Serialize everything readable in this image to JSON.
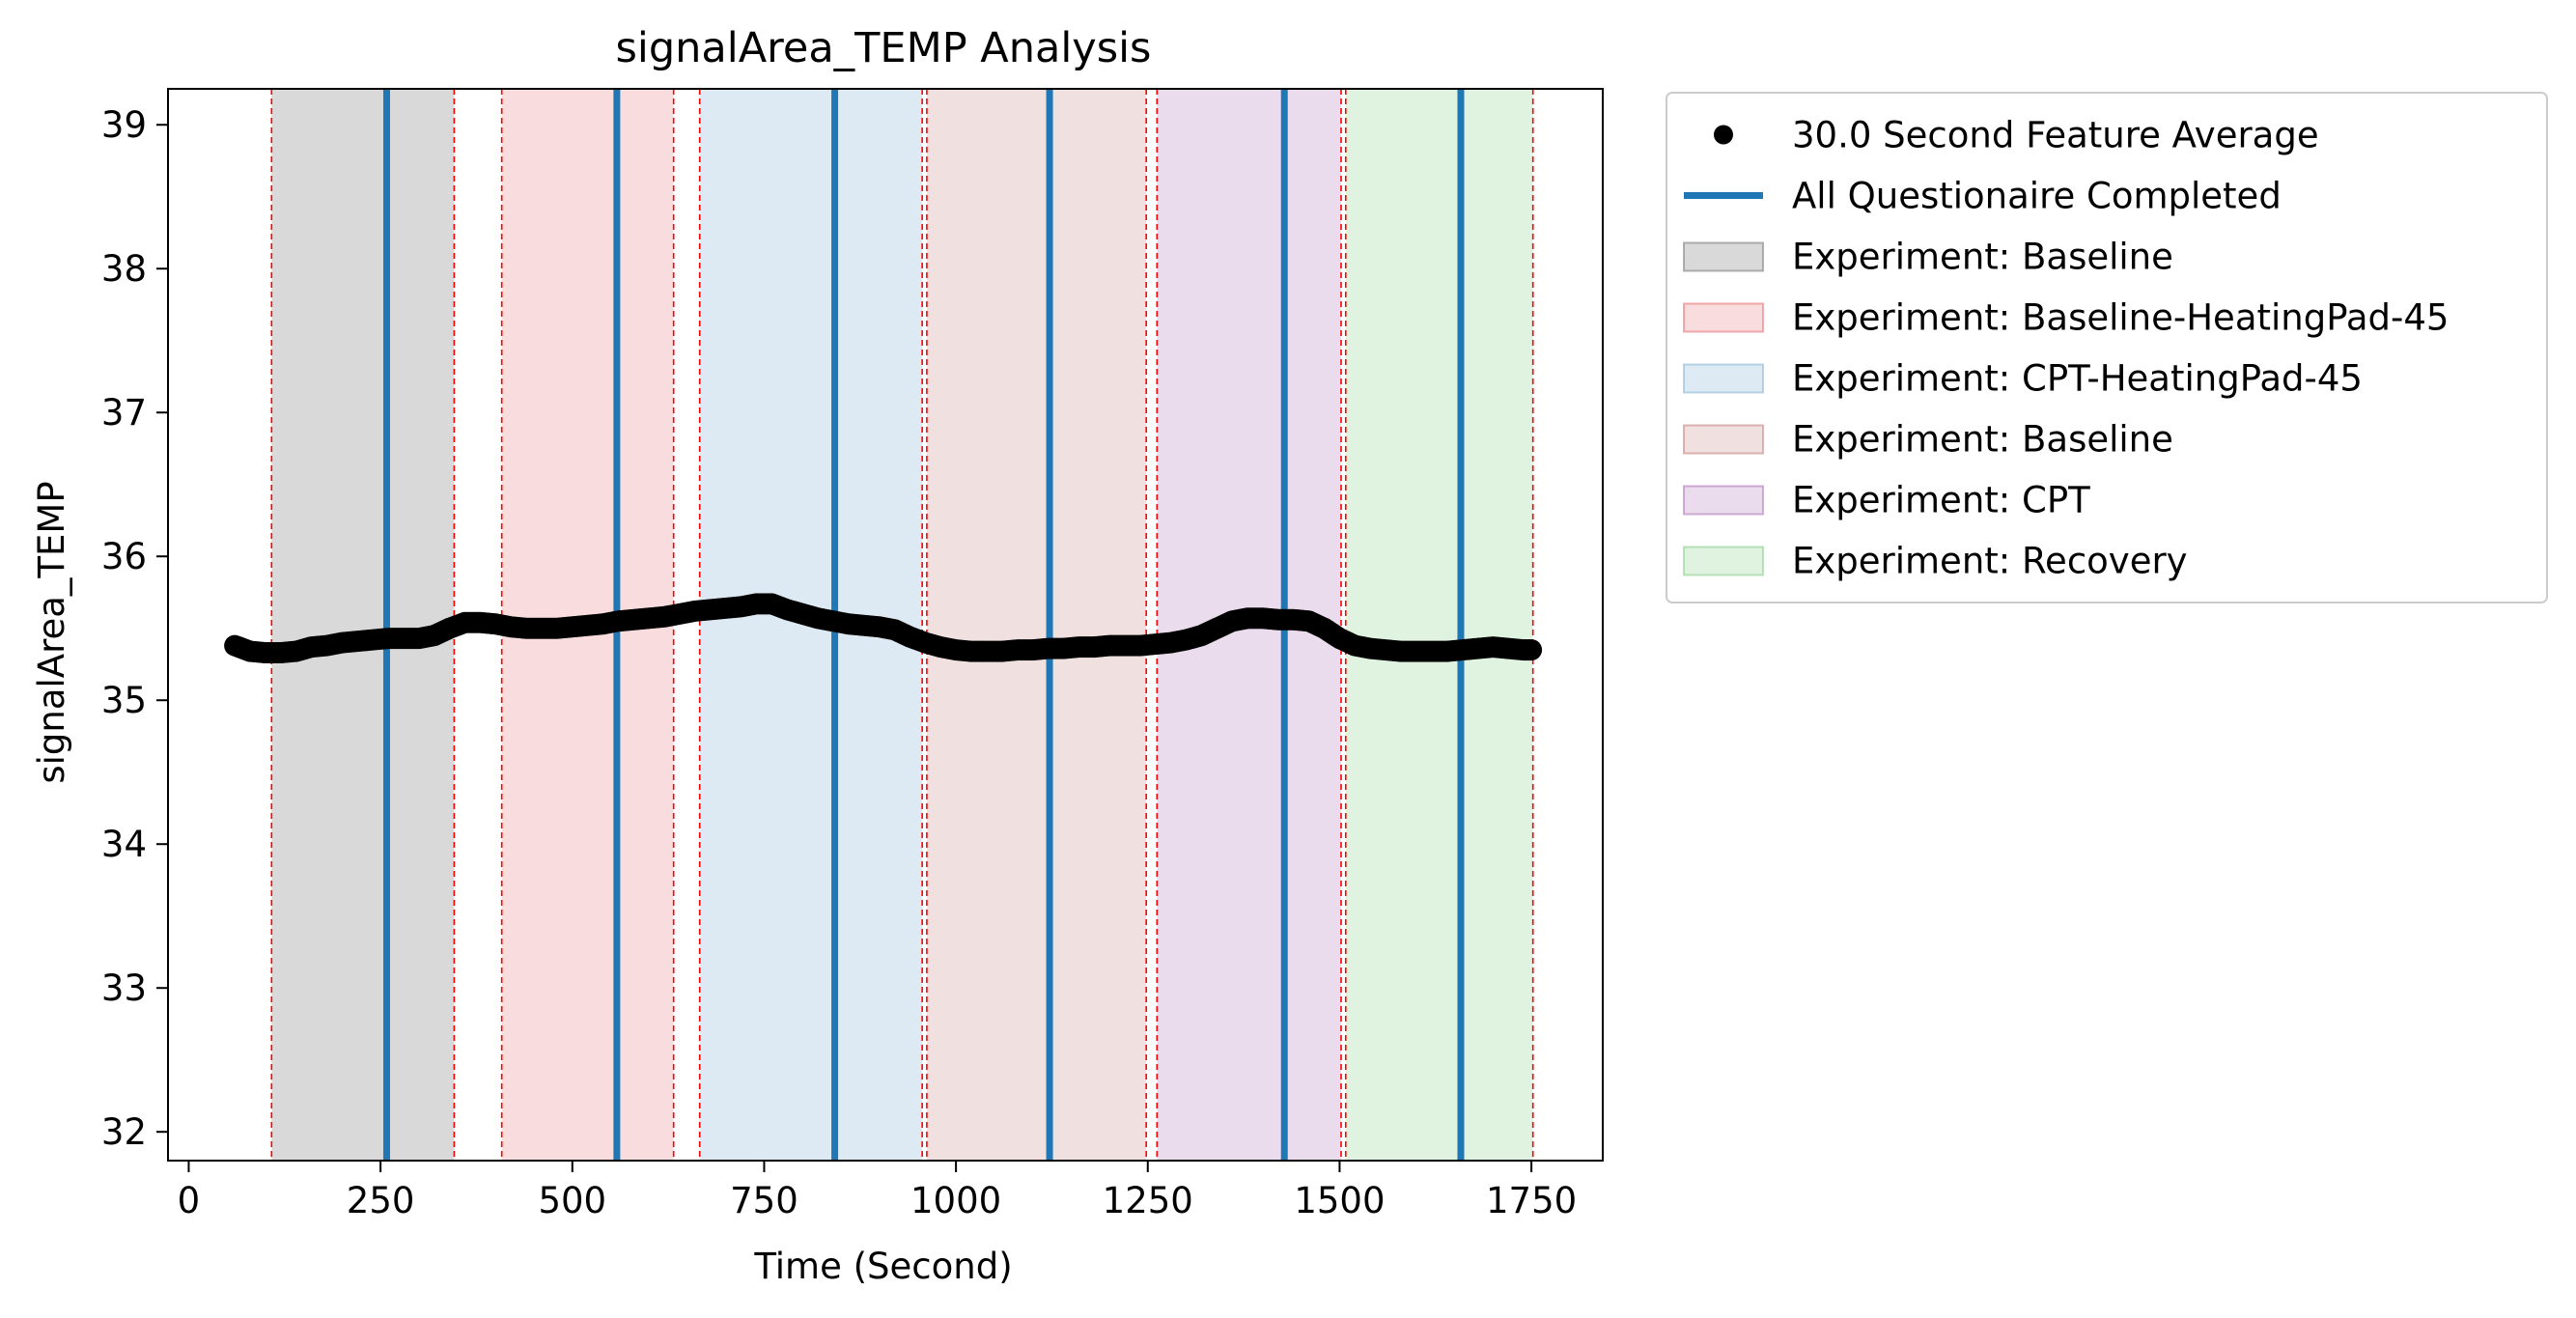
{
  "chart_data": {
    "type": "scatter",
    "title": "signalArea_TEMP Analysis",
    "xlabel": "Time (Second)",
    "ylabel": "signalArea_TEMP",
    "xlim": [
      -27,
      1843
    ],
    "ylim": [
      31.8,
      39.25
    ],
    "xticks": [
      0,
      250,
      500,
      750,
      1000,
      1250,
      1500,
      1750
    ],
    "yticks": [
      32,
      33,
      34,
      35,
      36,
      37,
      38,
      39
    ],
    "grid": false,
    "legend_placement": "outside upper-right",
    "series": [
      {
        "name": "30.0 Second Feature Average",
        "kind": "markers",
        "color": "#000000",
        "x": [
          60,
          80,
          100,
          120,
          140,
          160,
          180,
          200,
          220,
          240,
          260,
          280,
          300,
          320,
          340,
          360,
          380,
          400,
          420,
          440,
          460,
          480,
          500,
          520,
          540,
          560,
          580,
          600,
          620,
          640,
          660,
          680,
          700,
          720,
          740,
          760,
          780,
          800,
          820,
          840,
          860,
          880,
          900,
          920,
          940,
          960,
          980,
          1000,
          1020,
          1040,
          1060,
          1080,
          1100,
          1120,
          1140,
          1160,
          1180,
          1200,
          1220,
          1240,
          1260,
          1280,
          1300,
          1320,
          1340,
          1360,
          1380,
          1400,
          1420,
          1440,
          1460,
          1480,
          1500,
          1520,
          1540,
          1560,
          1580,
          1600,
          1620,
          1640,
          1660,
          1680,
          1700,
          1720,
          1740,
          1750
        ],
        "y": [
          35.38,
          35.34,
          35.33,
          35.33,
          35.34,
          35.37,
          35.38,
          35.4,
          35.41,
          35.42,
          35.43,
          35.43,
          35.43,
          35.45,
          35.5,
          35.54,
          35.54,
          35.53,
          35.51,
          35.5,
          35.5,
          35.5,
          35.51,
          35.52,
          35.53,
          35.55,
          35.56,
          35.57,
          35.58,
          35.6,
          35.62,
          35.63,
          35.64,
          35.65,
          35.67,
          35.67,
          35.63,
          35.6,
          35.57,
          35.55,
          35.53,
          35.52,
          35.51,
          35.49,
          35.44,
          35.4,
          35.37,
          35.35,
          35.34,
          35.34,
          35.34,
          35.35,
          35.35,
          35.36,
          35.36,
          35.37,
          35.37,
          35.38,
          35.38,
          35.38,
          35.39,
          35.4,
          35.42,
          35.45,
          35.5,
          35.55,
          35.57,
          35.57,
          35.56,
          35.56,
          35.55,
          35.5,
          35.43,
          35.38,
          35.36,
          35.35,
          35.34,
          35.34,
          35.34,
          35.34,
          35.35,
          35.36,
          35.37,
          35.36,
          35.35,
          35.35
        ]
      },
      {
        "name": "All Questionaire Completed",
        "kind": "vertical-lines",
        "color": "#1f77b4",
        "x": [
          258,
          558,
          842,
          1122,
          1428,
          1658
        ]
      }
    ],
    "regions": [
      {
        "name": "Experiment: Baseline",
        "x0": 108,
        "x1": 346,
        "color": "#808080",
        "opacity": 0.3
      },
      {
        "name": "Experiment: Baseline-HeatingPad-45",
        "x0": 408,
        "x1": 632,
        "color": "#e8747a",
        "opacity": 0.25
      },
      {
        "name": "Experiment: CPT-HeatingPad-45",
        "x0": 666,
        "x1": 956,
        "color": "#8fb8d6",
        "opacity": 0.3
      },
      {
        "name": "Experiment: Baseline",
        "x0": 962,
        "x1": 1248,
        "color": "#c98585",
        "opacity": 0.25
      },
      {
        "name": "Experiment: CPT",
        "x0": 1262,
        "x1": 1502,
        "color": "#b47cbd",
        "opacity": 0.28
      },
      {
        "name": "Experiment: Recovery",
        "x0": 1508,
        "x1": 1752,
        "color": "#8fd08f",
        "opacity": 0.28
      }
    ],
    "boundary_lines": {
      "color": "#ff0000",
      "style": "dashed",
      "x": [
        108,
        346,
        408,
        632,
        666,
        956,
        962,
        1248,
        1262,
        1502,
        1508,
        1752
      ]
    }
  }
}
